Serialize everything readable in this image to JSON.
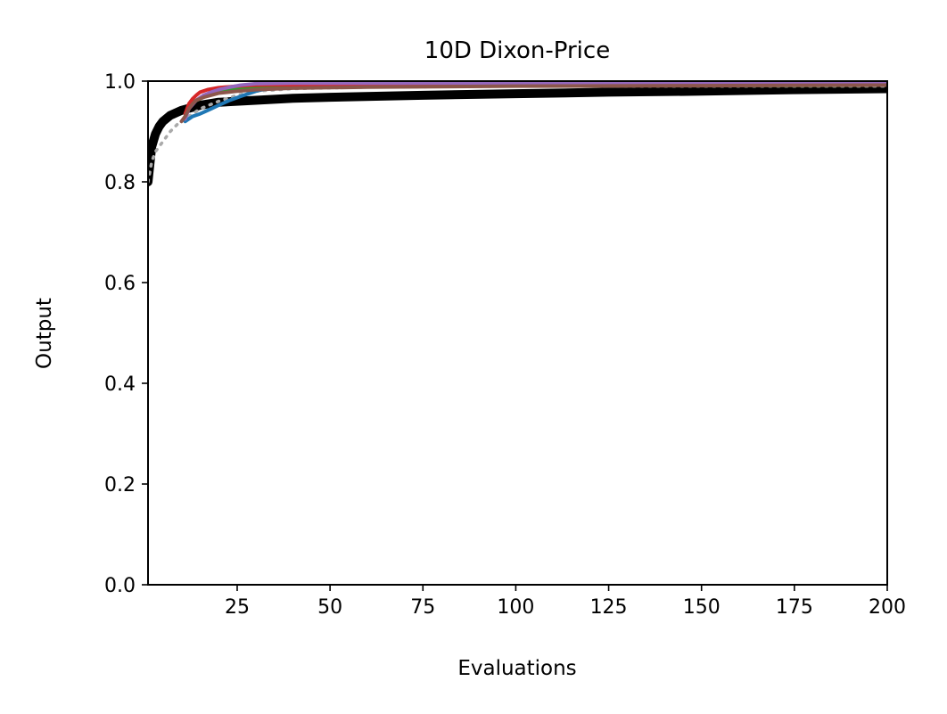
{
  "chart_data": {
    "type": "line",
    "title": "10D Dixon-Price",
    "xlabel": "Evaluations",
    "ylabel": "Output",
    "xlim": [
      1,
      200
    ],
    "ylim": [
      0.0,
      1.0
    ],
    "x_ticks": [
      25,
      50,
      75,
      100,
      125,
      150,
      175,
      200
    ],
    "x_tick_labels": [
      "25",
      "50",
      "75",
      "100",
      "125",
      "150",
      "175",
      "200"
    ],
    "y_ticks": [
      0.0,
      0.2,
      0.4,
      0.6,
      0.8,
      1.0
    ],
    "y_tick_labels": [
      "0.0",
      "0.2",
      "0.4",
      "0.6",
      "0.8",
      "1.0"
    ],
    "grid": false,
    "legend": "none",
    "series": [
      {
        "color": "#000000",
        "style": "solid-thick",
        "x": [
          1,
          2,
          3,
          4,
          5,
          7,
          10,
          15,
          20,
          30,
          40,
          50,
          75,
          100,
          125,
          150,
          175,
          200
        ],
        "y": [
          0.8,
          0.87,
          0.895,
          0.91,
          0.92,
          0.932,
          0.942,
          0.952,
          0.958,
          0.962,
          0.966,
          0.968,
          0.972,
          0.975,
          0.978,
          0.98,
          0.983,
          0.985
        ]
      },
      {
        "color": "#aaaaaa",
        "style": "dotted",
        "x": [
          1,
          2,
          3,
          5,
          7,
          9,
          11,
          13,
          15,
          20,
          25,
          30,
          40,
          60,
          100,
          150,
          200
        ],
        "y": [
          0.8,
          0.84,
          0.86,
          0.88,
          0.9,
          0.915,
          0.925,
          0.935,
          0.945,
          0.96,
          0.972,
          0.98,
          0.985,
          0.988,
          0.99,
          0.99,
          0.99
        ]
      },
      {
        "color": "#1f77b4",
        "style": "solid",
        "x": [
          11,
          13,
          15,
          18,
          20,
          23,
          26,
          30,
          33,
          36
        ],
        "y": [
          0.92,
          0.93,
          0.935,
          0.945,
          0.952,
          0.962,
          0.97,
          0.98,
          0.985,
          0.99
        ]
      },
      {
        "color": "#2ca02c",
        "style": "solid",
        "x": [
          11,
          12,
          13,
          15,
          17,
          20,
          25,
          30,
          40,
          200
        ],
        "y": [
          0.93,
          0.95,
          0.958,
          0.965,
          0.972,
          0.978,
          0.985,
          0.988,
          0.99,
          0.992
        ]
      },
      {
        "color": "#d62728",
        "style": "solid",
        "x": [
          11,
          12,
          13,
          14,
          15,
          17,
          20,
          25,
          30,
          40,
          200
        ],
        "y": [
          0.935,
          0.955,
          0.965,
          0.972,
          0.978,
          0.983,
          0.987,
          0.99,
          0.992,
          0.993,
          0.994
        ]
      },
      {
        "color": "#9467bd",
        "style": "solid",
        "x": [
          11,
          12,
          14,
          16,
          18,
          20,
          23,
          26,
          30,
          40,
          200
        ],
        "y": [
          0.925,
          0.945,
          0.962,
          0.972,
          0.978,
          0.983,
          0.988,
          0.992,
          0.995,
          0.996,
          0.997
        ]
      },
      {
        "color": "#8c564b",
        "style": "solid",
        "x": [
          10,
          11,
          12,
          13,
          14,
          16,
          18,
          20,
          25,
          30,
          40,
          60,
          100,
          150,
          200
        ],
        "y": [
          0.92,
          0.93,
          0.945,
          0.955,
          0.962,
          0.968,
          0.972,
          0.976,
          0.98,
          0.983,
          0.986,
          0.988,
          0.99,
          0.991,
          0.992
        ]
      }
    ]
  }
}
